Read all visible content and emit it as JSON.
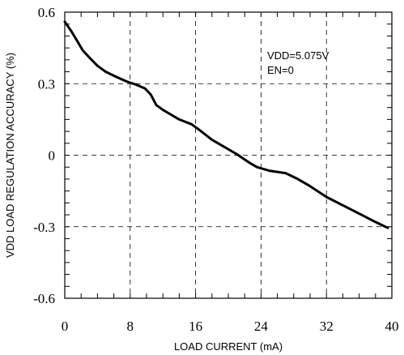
{
  "chart_data": {
    "type": "line",
    "xlabel": "LOAD CURRENT (mA)",
    "ylabel": "VDD LOAD REGULATION ACCURACY (%)",
    "xlim": [
      0,
      40
    ],
    "ylim": [
      -0.6,
      0.6
    ],
    "x_ticks": [
      0,
      8,
      16,
      24,
      32,
      40
    ],
    "y_ticks": [
      0.6,
      0.3,
      0,
      -0.3,
      -0.6
    ],
    "x_tick_labels": [
      "0",
      "8",
      "16",
      "24",
      "32",
      "40"
    ],
    "y_tick_labels": [
      "0.6",
      "0.3",
      "0",
      "-0.3",
      "-0.6"
    ],
    "grid": true,
    "annotations": [
      "VDD=5.075V",
      "EN=0"
    ],
    "series": [
      {
        "x": [
          0,
          0.8,
          1.5,
          2.2,
          3.0,
          4.0,
          5.0,
          6.2,
          7.5,
          8.8,
          9.8,
          10.5,
          11.2,
          12.0,
          13.0,
          14.0,
          15.5,
          16.5,
          18.0,
          19.5,
          21.0,
          22.5,
          23.5,
          25.0,
          27.0,
          28.5,
          30.0,
          32.0,
          34.0,
          36.0,
          38.0,
          39.5
        ],
        "y": [
          0.56,
          0.52,
          0.48,
          0.44,
          0.41,
          0.375,
          0.35,
          0.33,
          0.31,
          0.295,
          0.28,
          0.255,
          0.21,
          0.19,
          0.17,
          0.15,
          0.13,
          0.105,
          0.065,
          0.035,
          0.005,
          -0.03,
          -0.05,
          -0.065,
          -0.075,
          -0.1,
          -0.13,
          -0.175,
          -0.21,
          -0.245,
          -0.28,
          -0.305
        ]
      }
    ]
  }
}
